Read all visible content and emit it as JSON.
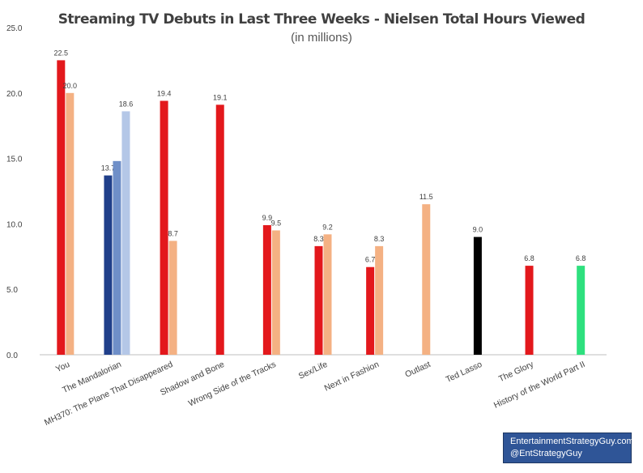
{
  "chart_data": {
    "type": "bar",
    "title": "Streaming TV Debuts in Last Three Weeks - Nielsen Total Hours Viewed",
    "subtitle": "(in millions)",
    "ylim": [
      0,
      25
    ],
    "yticks": [
      "0.0",
      "5.0",
      "10.0",
      "15.0",
      "20.0",
      "25.0"
    ],
    "grid": false,
    "categories": [
      "You",
      "The Mandalorian",
      "MH370: The Plane That Disappeared",
      "Shadow and Bone",
      "Wrong Side of the Tracks",
      "Sex/Life",
      "Next in Fashion",
      "Outlast",
      "Ted Lasso",
      "The Glory",
      "History of the World Part II"
    ],
    "groups": [
      {
        "bars": [
          {
            "value": 22.5,
            "label": "22.5",
            "color": "#e3181c"
          },
          {
            "value": 20.0,
            "label": "20.0",
            "color": "#f4b183"
          }
        ]
      },
      {
        "bars": [
          {
            "value": 13.7,
            "label": "13.7",
            "color": "#203f8a"
          },
          {
            "value": 14.8,
            "label": "",
            "color": "#6f8fc8"
          },
          {
            "value": 18.6,
            "label": "18.6",
            "color": "#b4c7e7"
          }
        ]
      },
      {
        "bars": [
          {
            "value": 19.4,
            "label": "19.4",
            "color": "#e3181c"
          },
          {
            "value": 8.7,
            "label": "8.7",
            "color": "#f4b183"
          }
        ]
      },
      {
        "bars": [
          {
            "value": 19.1,
            "label": "19.1",
            "color": "#e3181c"
          }
        ]
      },
      {
        "bars": [
          {
            "value": 9.9,
            "label": "9.9",
            "color": "#e3181c"
          },
          {
            "value": 9.5,
            "label": "9.5",
            "color": "#f4b183"
          }
        ]
      },
      {
        "bars": [
          {
            "value": 8.3,
            "label": "8.3",
            "color": "#e3181c"
          },
          {
            "value": 9.2,
            "label": "9.2",
            "color": "#f4b183"
          }
        ]
      },
      {
        "bars": [
          {
            "value": 6.7,
            "label": "6.7",
            "color": "#e3181c"
          },
          {
            "value": 8.3,
            "label": "8.3",
            "color": "#f4b183"
          }
        ]
      },
      {
        "bars": [
          {
            "value": 11.5,
            "label": "11.5",
            "color": "#f4b183"
          }
        ]
      },
      {
        "bars": [
          {
            "value": 9.0,
            "label": "9.0",
            "color": "#000000"
          }
        ]
      },
      {
        "bars": [
          {
            "value": 6.8,
            "label": "6.8",
            "color": "#e3181c"
          }
        ]
      },
      {
        "bars": [
          {
            "value": 6.8,
            "label": "6.8",
            "color": "#2ee07e"
          }
        ]
      }
    ]
  },
  "branding": {
    "line1": "EntertainmentStrategyGuy.com",
    "line2": "@EntStrategyGuy"
  }
}
